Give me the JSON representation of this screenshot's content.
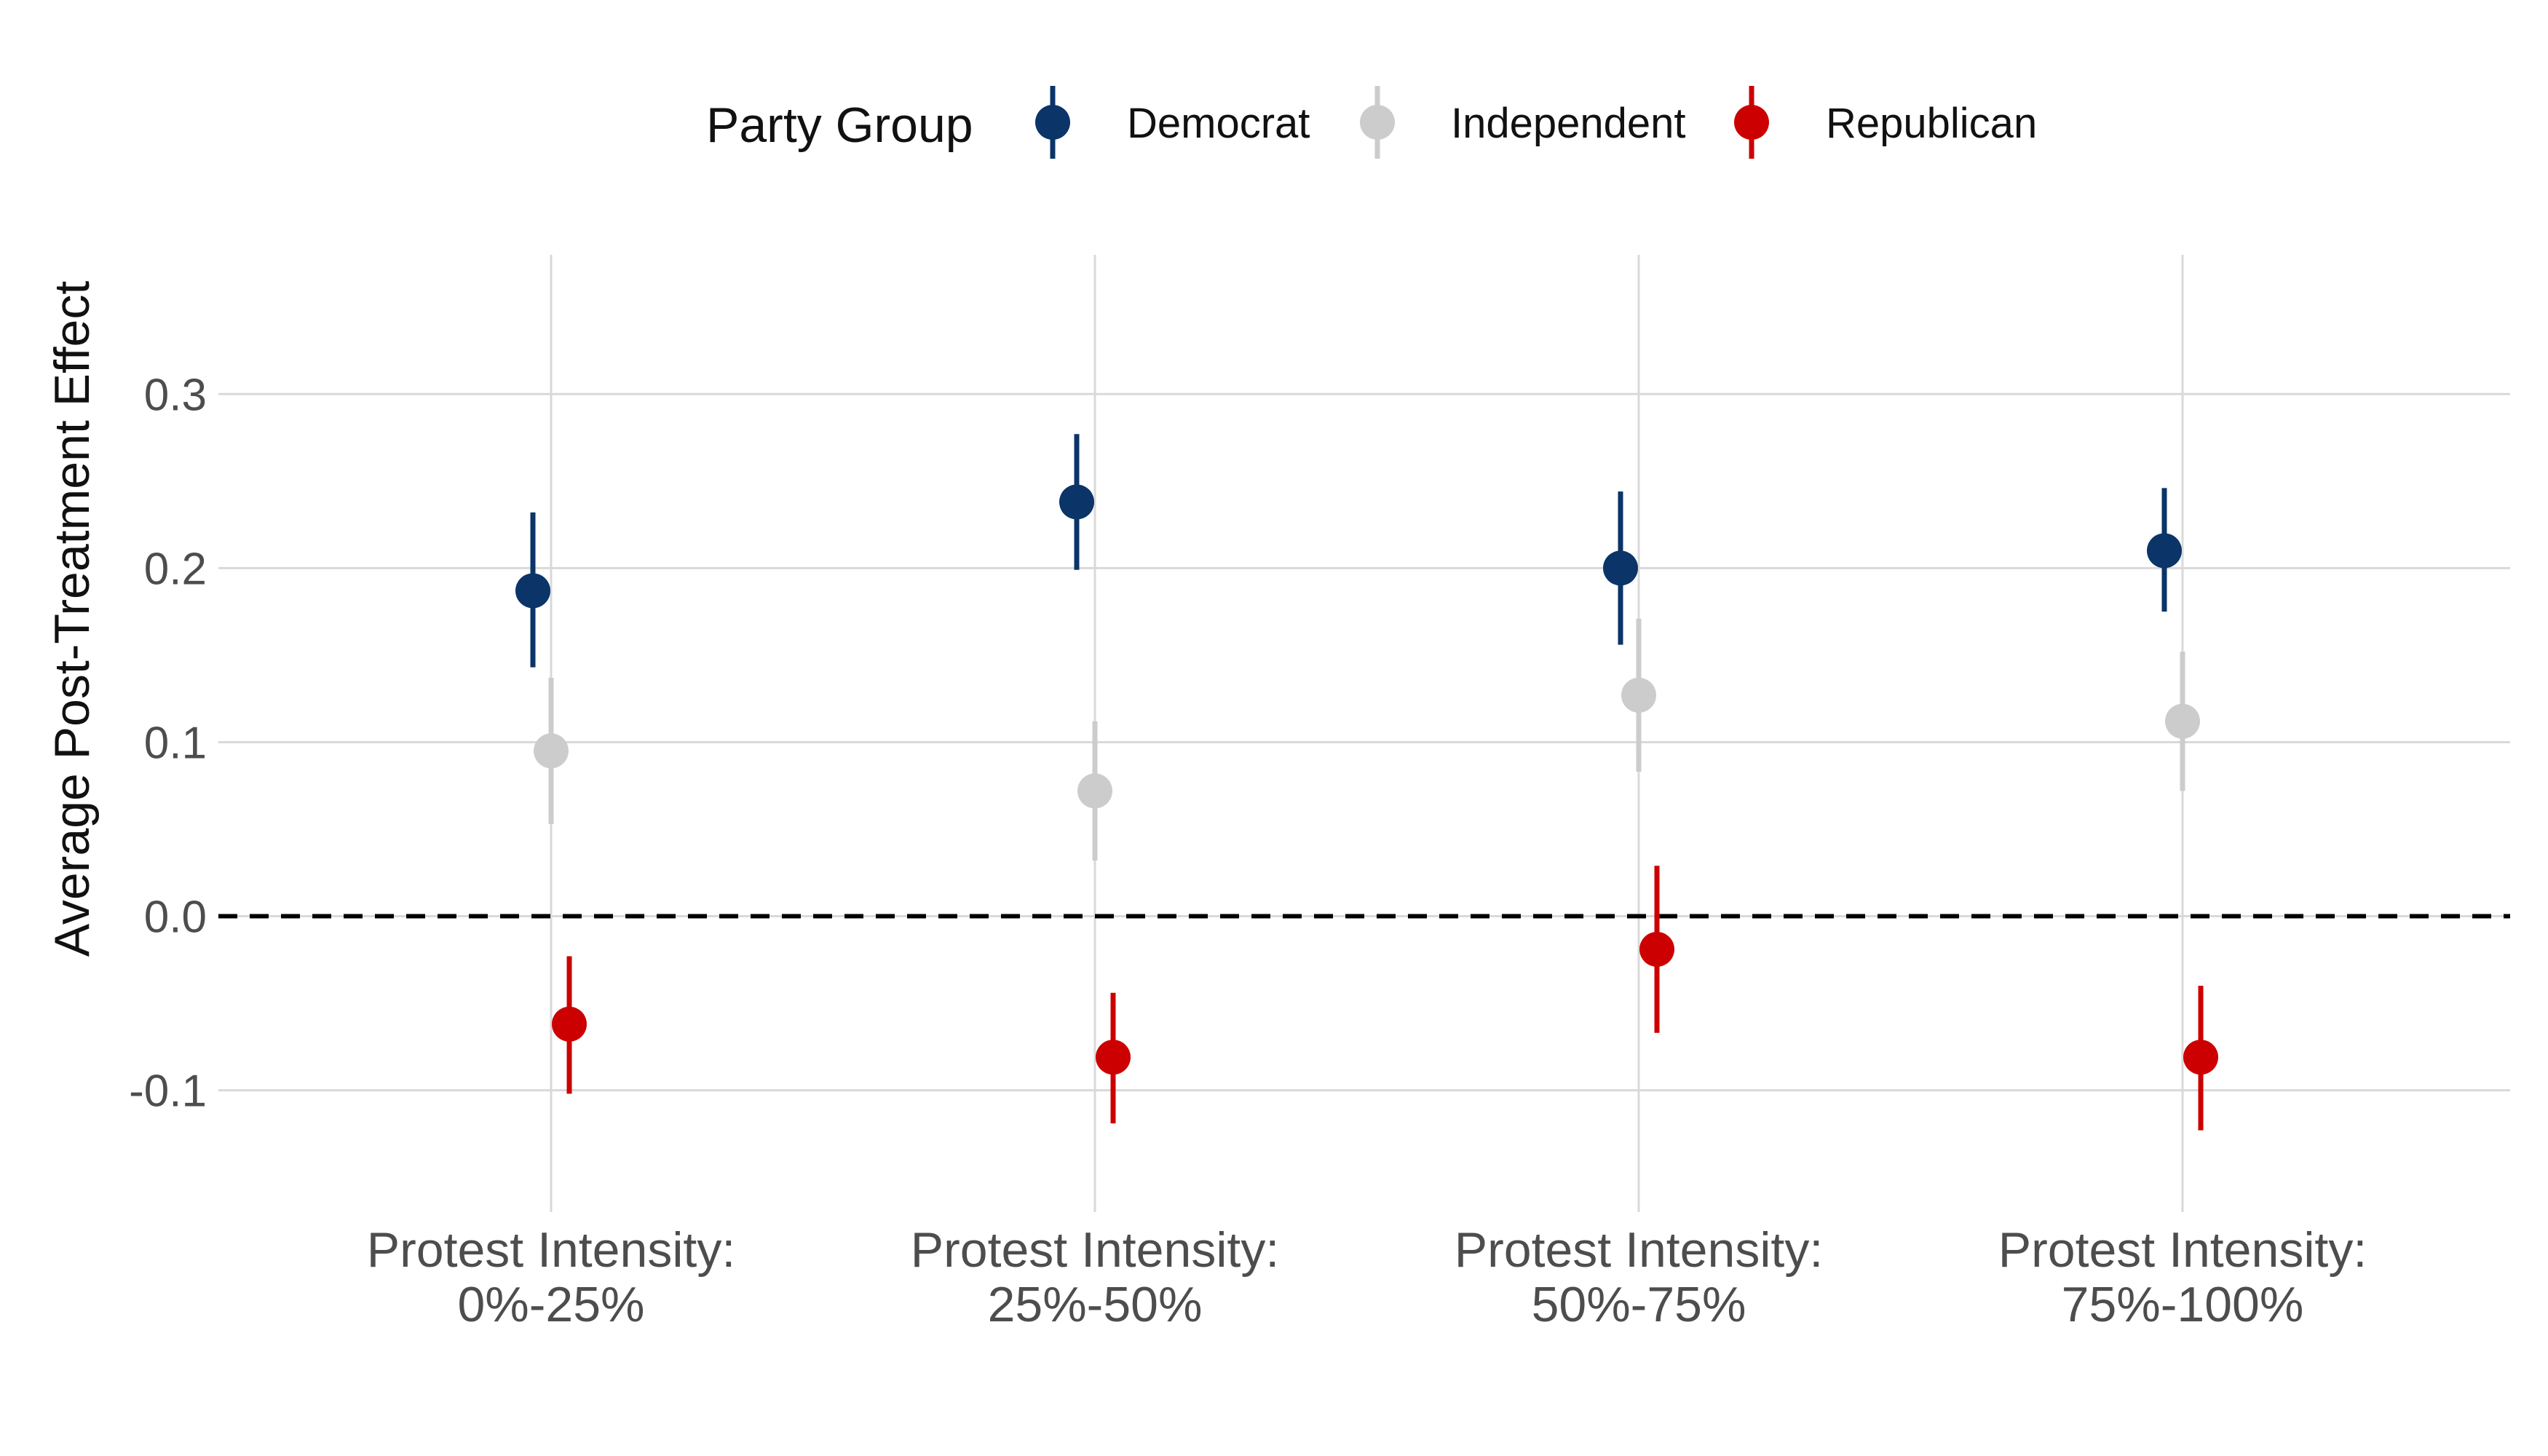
{
  "chart_data": {
    "type": "scatter",
    "title": "",
    "xlabel": "",
    "ylabel": "Average Post-Treatment Effect",
    "ylim": [
      -0.17,
      0.38
    ],
    "yticks": [
      -0.1,
      0.0,
      0.1,
      0.2,
      0.3
    ],
    "ytick_labels": [
      "-0.1",
      "0.0",
      "0.1",
      "0.2",
      "0.3"
    ],
    "grid": true,
    "reference_line": {
      "y": 0.0,
      "style": "dashed",
      "color": "#000000"
    },
    "categories": [
      [
        "Protest Intensity:",
        "0%-25%"
      ],
      [
        "Protest Intensity:",
        "25%-50%"
      ],
      [
        "Protest Intensity:",
        "50%-75%"
      ],
      [
        "Protest Intensity:",
        "75%-100%"
      ]
    ],
    "legend": {
      "title": "Party Group",
      "position": "top"
    },
    "series": [
      {
        "name": "Democrat",
        "color": "#0b3468",
        "values": [
          0.187,
          0.238,
          0.2,
          0.21
        ],
        "lower": [
          0.143,
          0.199,
          0.156,
          0.175
        ],
        "upper": [
          0.232,
          0.277,
          0.244,
          0.246
        ]
      },
      {
        "name": "Independent",
        "color": "#cccccc",
        "values": [
          0.095,
          0.072,
          0.127,
          0.112
        ],
        "lower": [
          0.053,
          0.032,
          0.083,
          0.072
        ],
        "upper": [
          0.137,
          0.112,
          0.171,
          0.152
        ]
      },
      {
        "name": "Republican",
        "color": "#cc0000",
        "values": [
          -0.062,
          -0.081,
          -0.019,
          -0.081
        ],
        "lower": [
          -0.102,
          -0.119,
          -0.067,
          -0.123
        ],
        "upper": [
          -0.023,
          -0.044,
          0.029,
          -0.04
        ]
      }
    ]
  }
}
